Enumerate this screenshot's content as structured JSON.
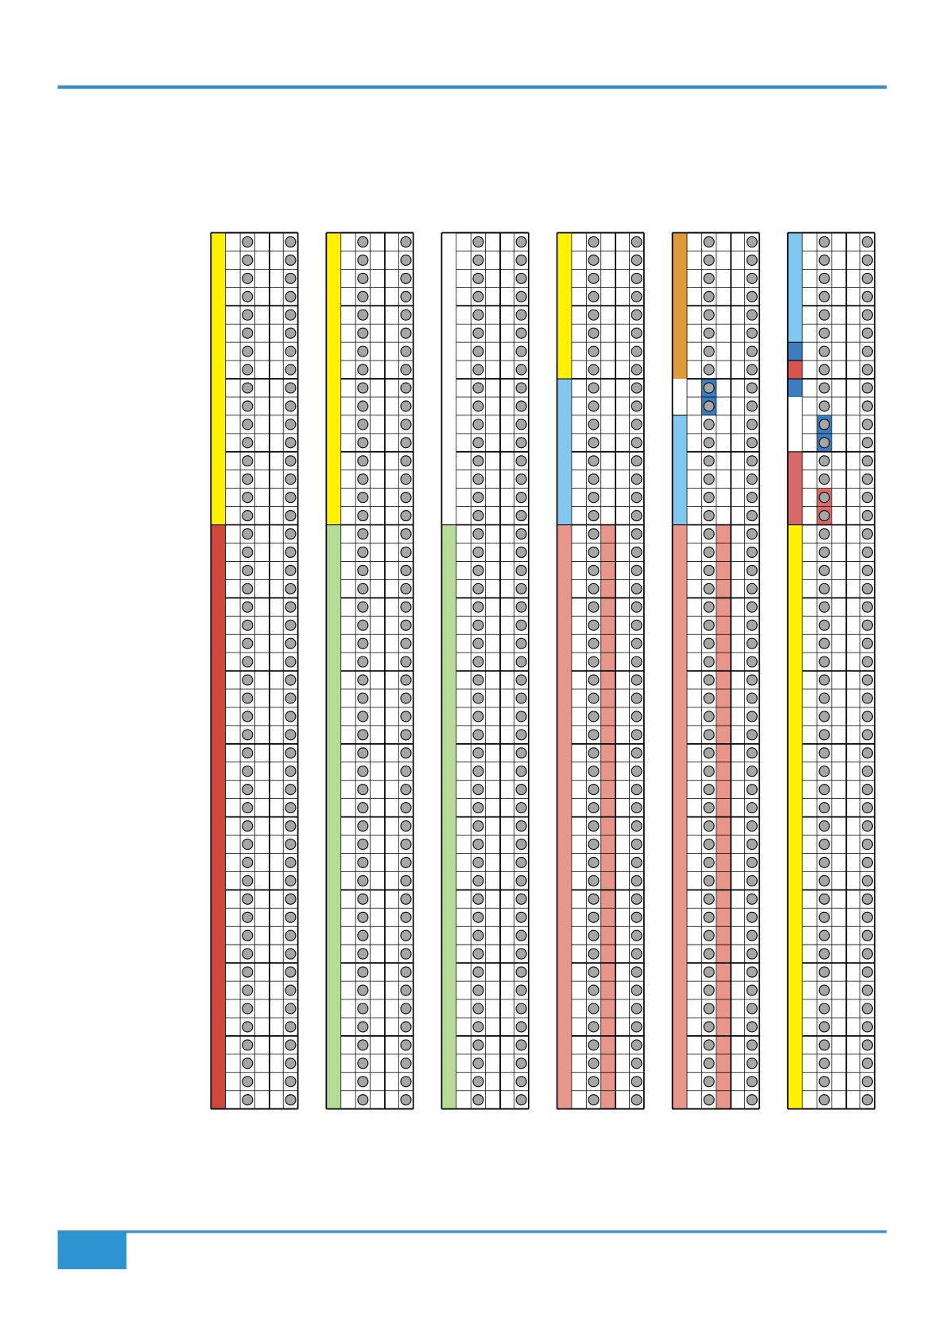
{
  "page": {
    "accent_color": "#3a8fc8",
    "footer_box_color": "#2e93d1",
    "circle_color": "#a6a6a6",
    "rows": 48,
    "panels": [
      {
        "cells": [
          {
            "col": 0,
            "from": 0,
            "to": 16,
            "color": "#fff200"
          },
          {
            "col": 0,
            "from": 16,
            "to": 48,
            "color": "#d0473b"
          }
        ]
      },
      {
        "cells": [
          {
            "col": 0,
            "from": 0,
            "to": 16,
            "color": "#fff200"
          },
          {
            "col": 0,
            "from": 16,
            "to": 48,
            "color": "#b5dc95"
          }
        ]
      },
      {
        "cells": [
          {
            "col": 0,
            "from": 16,
            "to": 48,
            "color": "#b5dc95"
          }
        ]
      },
      {
        "cells": [
          {
            "col": 0,
            "from": 0,
            "to": 8,
            "color": "#fff200"
          },
          {
            "col": 0,
            "from": 8,
            "to": 16,
            "color": "#80c8ef"
          },
          {
            "col": 0,
            "from": 16,
            "to": 48,
            "color": "#e8968a"
          },
          {
            "col": 3,
            "from": 16,
            "to": 48,
            "color": "#e8968a"
          }
        ]
      },
      {
        "cells": [
          {
            "col": 0,
            "from": 0,
            "to": 8,
            "color": "#e19a3a"
          },
          {
            "col": 0,
            "from": 10,
            "to": 16,
            "color": "#80c8ef"
          },
          {
            "col": 0,
            "from": 16,
            "to": 48,
            "color": "#e8968a"
          },
          {
            "col": 2,
            "from": 8,
            "to": 10,
            "color": "#3b7dc0"
          },
          {
            "col": 3,
            "from": 16,
            "to": 48,
            "color": "#e8968a"
          }
        ]
      },
      {
        "cells": [
          {
            "col": 0,
            "from": 0,
            "to": 6,
            "color": "#80c8ef"
          },
          {
            "col": 0,
            "from": 6,
            "to": 7,
            "color": "#3b7dc0"
          },
          {
            "col": 0,
            "from": 7,
            "to": 8,
            "color": "#d9534f"
          },
          {
            "col": 0,
            "from": 8,
            "to": 9,
            "color": "#3b7dc0"
          },
          {
            "col": 0,
            "from": 12,
            "to": 16,
            "color": "#d9686a"
          },
          {
            "col": 0,
            "from": 16,
            "to": 48,
            "color": "#fff200"
          },
          {
            "col": 2,
            "from": 10,
            "to": 12,
            "color": "#3b7dc0"
          },
          {
            "col": 2,
            "from": 14,
            "to": 16,
            "color": "#e06a6a"
          }
        ]
      }
    ]
  }
}
